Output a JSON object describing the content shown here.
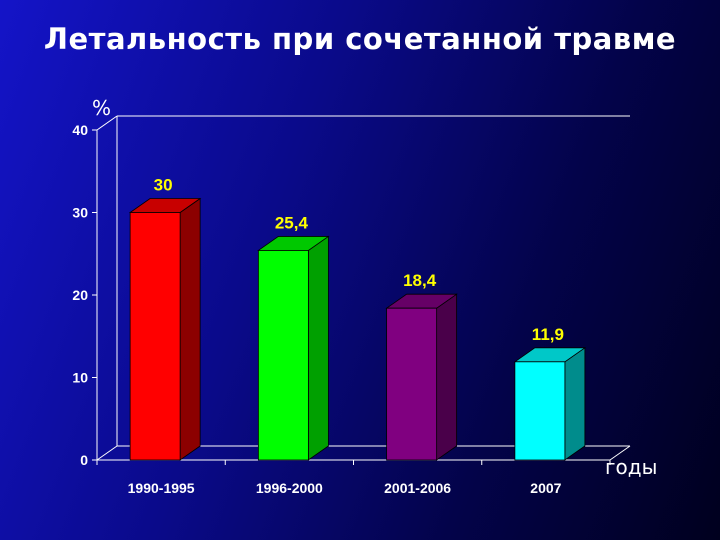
{
  "slide": {
    "title": "Летальность при сочетанной травме"
  },
  "chart_data": {
    "type": "bar",
    "title": "Летальность при сочетанной травме",
    "ylabel": "%",
    "xlabel": "годы",
    "categories": [
      "1990-1995",
      "1996-2000",
      "2001-2006",
      "2007"
    ],
    "values": [
      30,
      25.4,
      18.4,
      11.9
    ],
    "data_labels": [
      "30",
      "25,4",
      "18,4",
      "11,9"
    ],
    "ylim": [
      0,
      40
    ],
    "yticks": [
      0,
      10,
      20,
      30,
      40
    ],
    "grid": false,
    "three_d": true,
    "colors": [
      {
        "front": "#ff0000",
        "side": "#8c0000",
        "top": "#c80000"
      },
      {
        "front": "#00ff00",
        "side": "#00a000",
        "top": "#00c800"
      },
      {
        "front": "#800080",
        "side": "#4a004a",
        "top": "#660066"
      },
      {
        "front": "#00ffff",
        "side": "#008c8c",
        "top": "#00c8c8"
      }
    ]
  }
}
